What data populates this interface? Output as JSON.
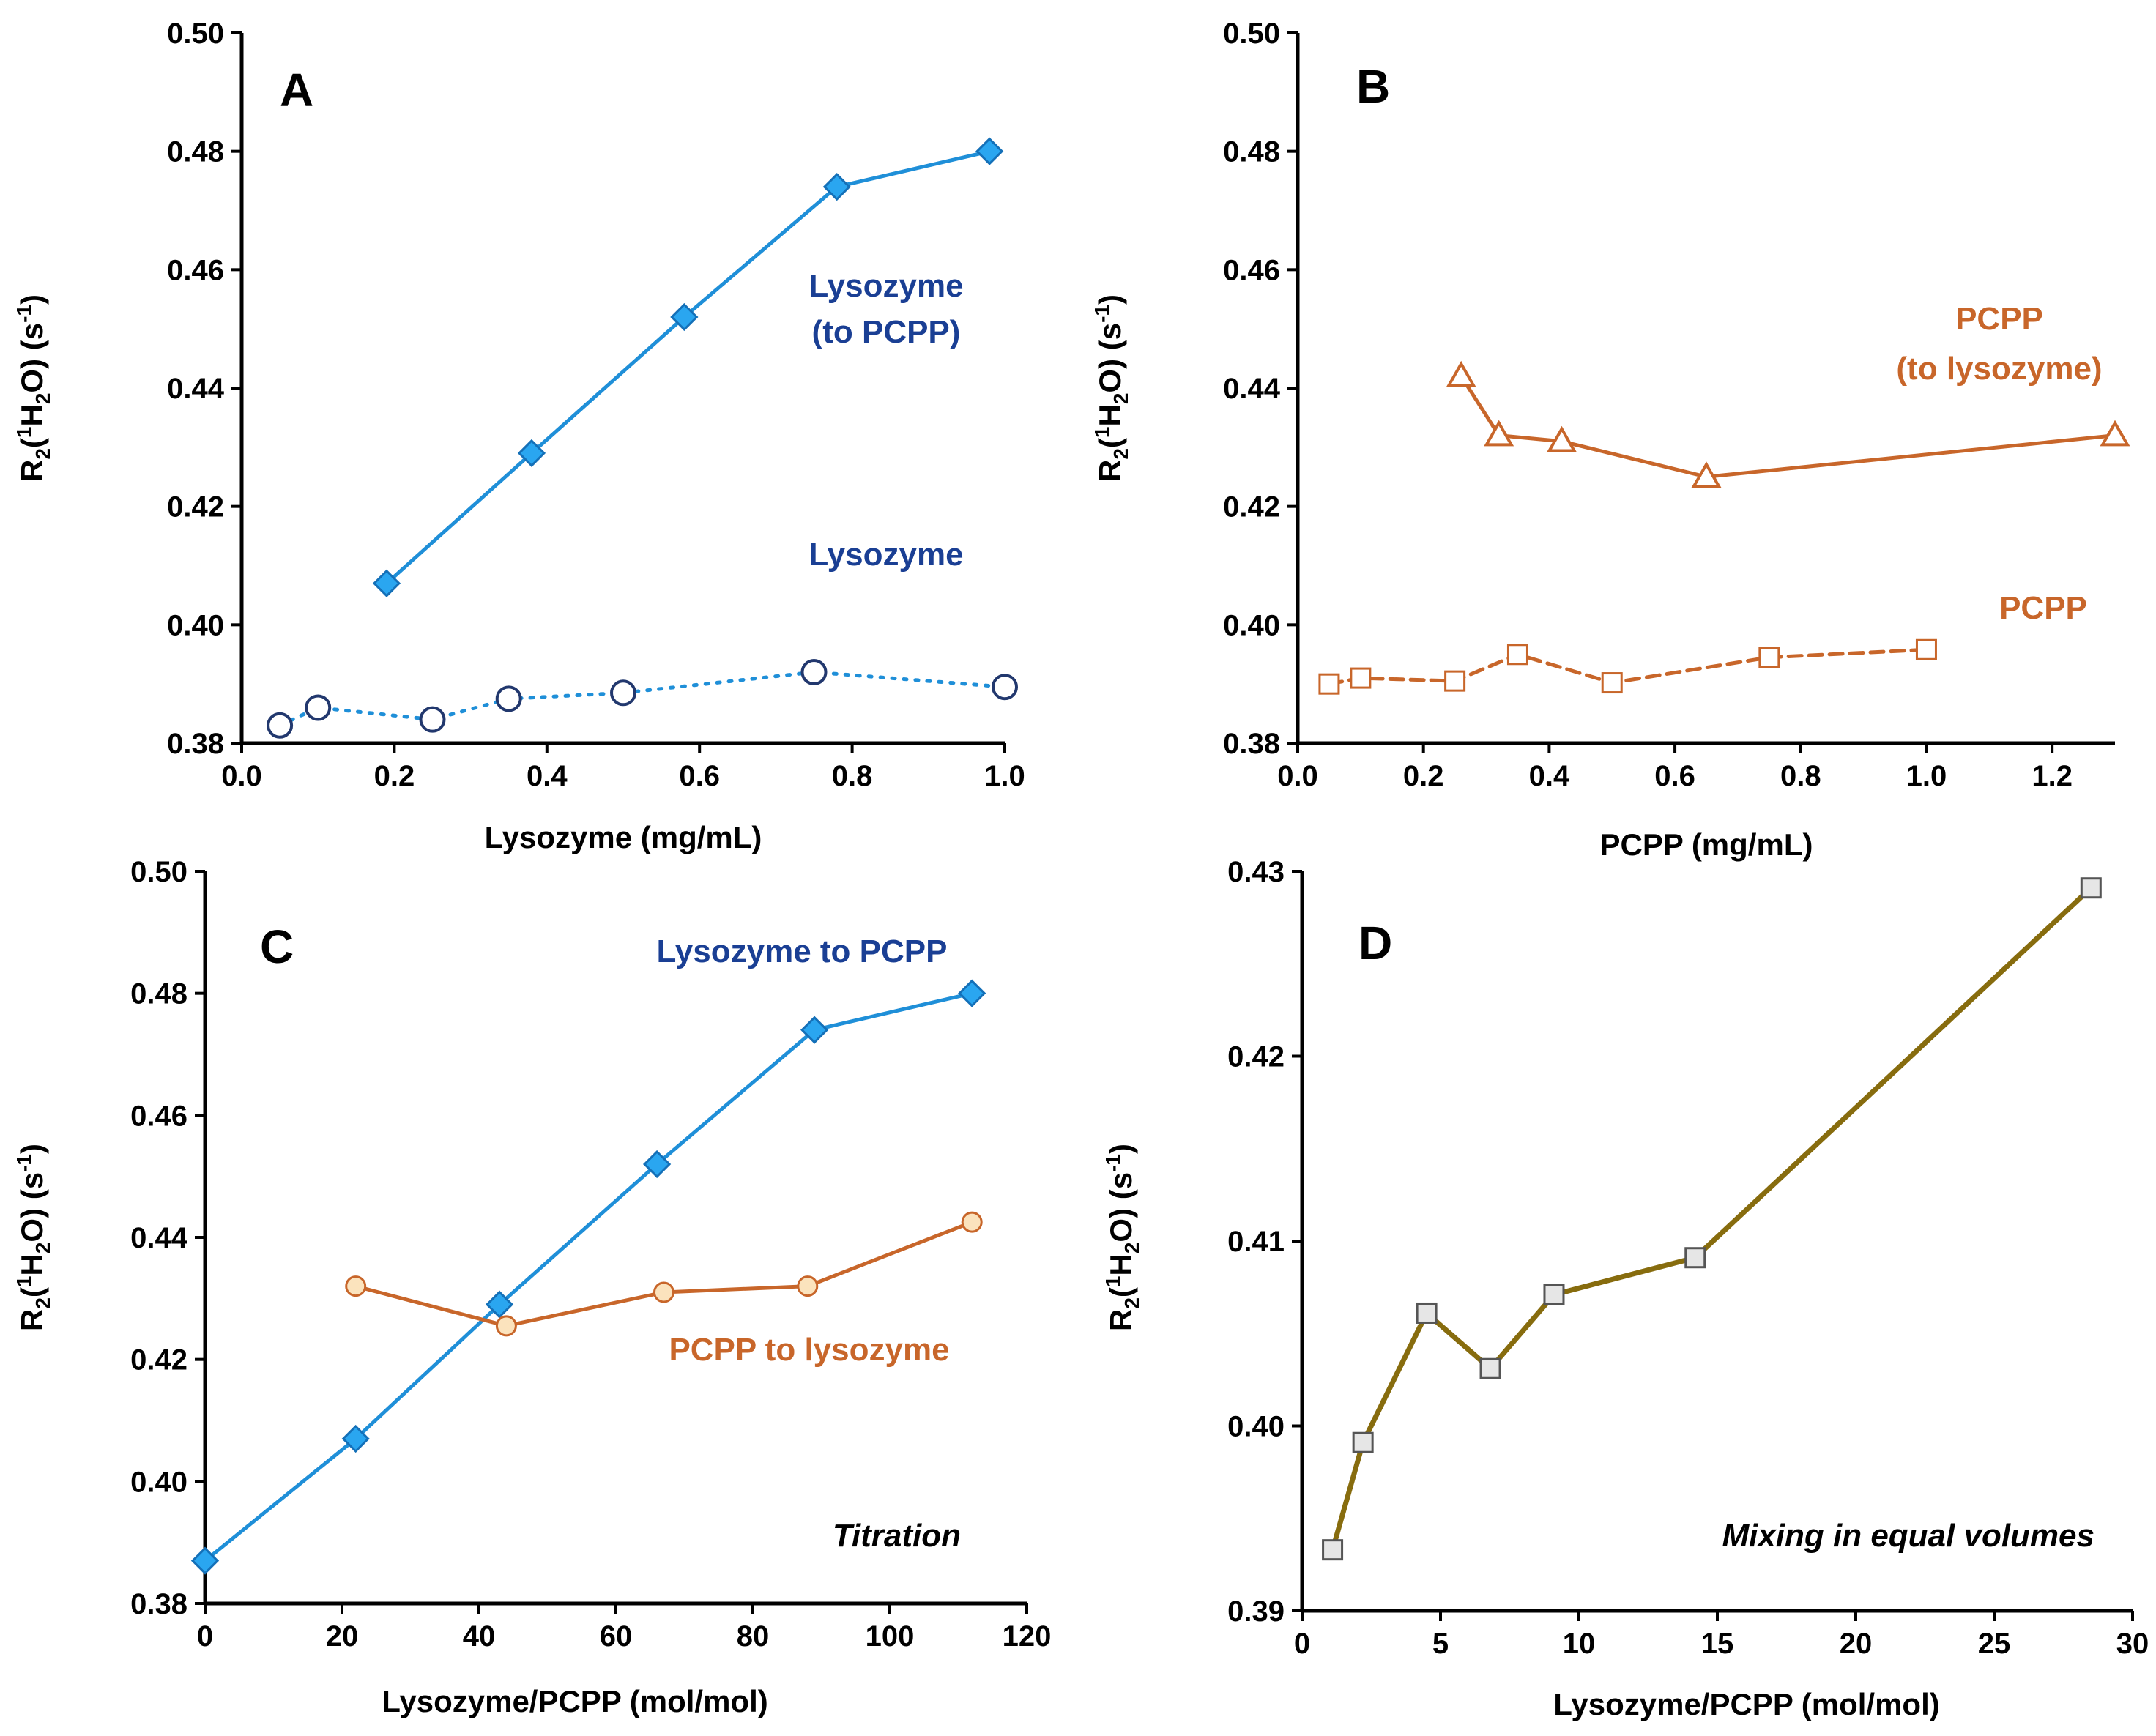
{
  "chart_data": [
    {
      "type": "line",
      "panel_label": "A",
      "xlabel": "Lysozyme (mg/mL)",
      "ylabel": "R2(1H2O) (s-1)",
      "xlim": [
        0,
        1.0
      ],
      "ylim": [
        0.38,
        0.5
      ],
      "x_ticks": [
        "0.0",
        "0.2",
        "0.4",
        "0.6",
        "0.8",
        "1.0"
      ],
      "y_ticks": [
        "0.38",
        "0.40",
        "0.42",
        "0.44",
        "0.46",
        "0.48",
        "0.50"
      ],
      "series": [
        {
          "name": "Lysozyme (to PCPP)",
          "label_lines": [
            "Lysozyme",
            "(to PCPP)"
          ],
          "color": "#1f8fd8",
          "label_color": "#1a3f94",
          "marker": "diamond",
          "dash": "solid",
          "x": [
            0.19,
            0.38,
            0.58,
            0.78,
            0.98
          ],
          "y": [
            0.407,
            0.429,
            0.452,
            0.474,
            0.48
          ]
        },
        {
          "name": "Lysozyme",
          "label_lines": [
            "Lysozyme"
          ],
          "color": "#1f8fd8",
          "label_color": "#1a3f94",
          "marker": "open-circle",
          "marker_color": "#22386e",
          "dash": "dotted",
          "x": [
            0.05,
            0.1,
            0.25,
            0.35,
            0.5,
            0.75,
            1.0
          ],
          "y": [
            0.383,
            0.386,
            0.384,
            0.3875,
            0.3885,
            0.392,
            0.3895
          ]
        }
      ]
    },
    {
      "type": "line",
      "panel_label": "B",
      "xlabel": "PCPP (mg/mL)",
      "ylabel": "R2(1H2O) (s-1)",
      "xlim": [
        0,
        1.3
      ],
      "ylim": [
        0.38,
        0.5
      ],
      "x_ticks": [
        "0.0",
        "0.2",
        "0.4",
        "0.6",
        "0.8",
        "1.0",
        "1.2"
      ],
      "y_ticks": [
        "0.38",
        "0.40",
        "0.42",
        "0.44",
        "0.46",
        "0.48",
        "0.50"
      ],
      "series": [
        {
          "name": "PCPP (to lysozyme)",
          "label_lines": [
            "PCPP",
            "(to lysozyme)"
          ],
          "color": "#c8662a",
          "label_color": "#c8662a",
          "marker": "open-triangle",
          "dash": "solid",
          "x": [
            0.26,
            0.32,
            0.42,
            0.65,
            1.3
          ],
          "y": [
            0.442,
            0.432,
            0.431,
            0.425,
            0.432
          ]
        },
        {
          "name": "PCPP",
          "label_lines": [
            "PCPP"
          ],
          "color": "#c8662a",
          "label_color": "#c8662a",
          "marker": "open-square",
          "dash": "dashed",
          "x": [
            0.05,
            0.1,
            0.25,
            0.35,
            0.5,
            0.75,
            1.0
          ],
          "y": [
            0.39,
            0.391,
            0.3905,
            0.395,
            0.3902,
            0.3945,
            0.3958
          ]
        }
      ]
    },
    {
      "type": "line",
      "panel_label": "C",
      "annotation": "Titration",
      "xlabel": "Lysozyme/PCPP (mol/mol)",
      "ylabel": "R2(1H2O) (s-1)",
      "xlim": [
        0,
        120
      ],
      "ylim": [
        0.38,
        0.5
      ],
      "x_ticks": [
        "0",
        "20",
        "40",
        "60",
        "80",
        "100",
        "120"
      ],
      "y_ticks": [
        "0.38",
        "0.40",
        "0.42",
        "0.44",
        "0.46",
        "0.48",
        "0.50"
      ],
      "series": [
        {
          "name": "Lysozyme to PCPP",
          "label_lines": [
            "Lysozyme to PCPP"
          ],
          "color": "#1f8fd8",
          "label_color": "#1a3f94",
          "marker": "diamond",
          "dash": "solid",
          "x": [
            0,
            22,
            43,
            66,
            89,
            112
          ],
          "y": [
            0.387,
            0.407,
            0.429,
            0.452,
            0.474,
            0.48
          ]
        },
        {
          "name": "PCPP to lysozyme",
          "label_lines": [
            "PCPP to lysozyme"
          ],
          "color": "#c8662a",
          "label_color": "#c8662a",
          "marker": "filled-circle",
          "marker_fill": "#fbe3bd",
          "dash": "solid",
          "x": [
            22,
            44,
            67,
            88,
            112
          ],
          "y": [
            0.432,
            0.4255,
            0.431,
            0.432,
            0.4425
          ]
        }
      ]
    },
    {
      "type": "line",
      "panel_label": "D",
      "annotation": "Mixing in equal volumes",
      "xlabel": "Lysozyme/PCPP (mol/mol)",
      "ylabel": "R2(1H2O) (s-1)",
      "xlim": [
        0,
        30
      ],
      "ylim": [
        0.39,
        0.43
      ],
      "x_ticks": [
        "0",
        "5",
        "10",
        "15",
        "20",
        "25",
        "30"
      ],
      "y_ticks": [
        "0.39",
        "0.40",
        "0.41",
        "0.42",
        "0.43"
      ],
      "series": [
        {
          "name": "Mixing in equal volumes",
          "color": "#876c0e",
          "marker": "grey-square",
          "marker_fill": "#e6e6e6",
          "dash": "solid",
          "x": [
            1.1,
            2.2,
            4.5,
            6.8,
            9.1,
            14.2,
            28.5
          ],
          "y": [
            0.3933,
            0.3991,
            0.4061,
            0.4031,
            0.4071,
            0.4091,
            0.4291
          ]
        }
      ]
    }
  ]
}
